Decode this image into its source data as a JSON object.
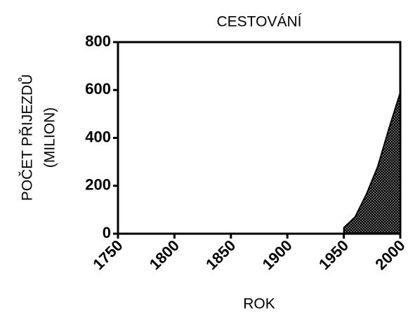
{
  "chart_data": {
    "type": "area",
    "title": "CESTOVÁNÍ",
    "y_label": [
      "POČET PŘIJEZDŮ",
      "(MILION)"
    ],
    "x_label": "ROK",
    "x": [
      1950,
      1960,
      1970,
      1980,
      1990,
      2000
    ],
    "values": [
      25,
      70,
      165,
      280,
      440,
      590
    ],
    "color": "#000000",
    "xlim": [
      1750,
      2000
    ],
    "xticks": [
      1750,
      1800,
      1850,
      1900,
      1950,
      2000
    ],
    "ylim": [
      0,
      800
    ],
    "yticks": [
      0,
      200,
      400,
      600,
      800
    ]
  }
}
